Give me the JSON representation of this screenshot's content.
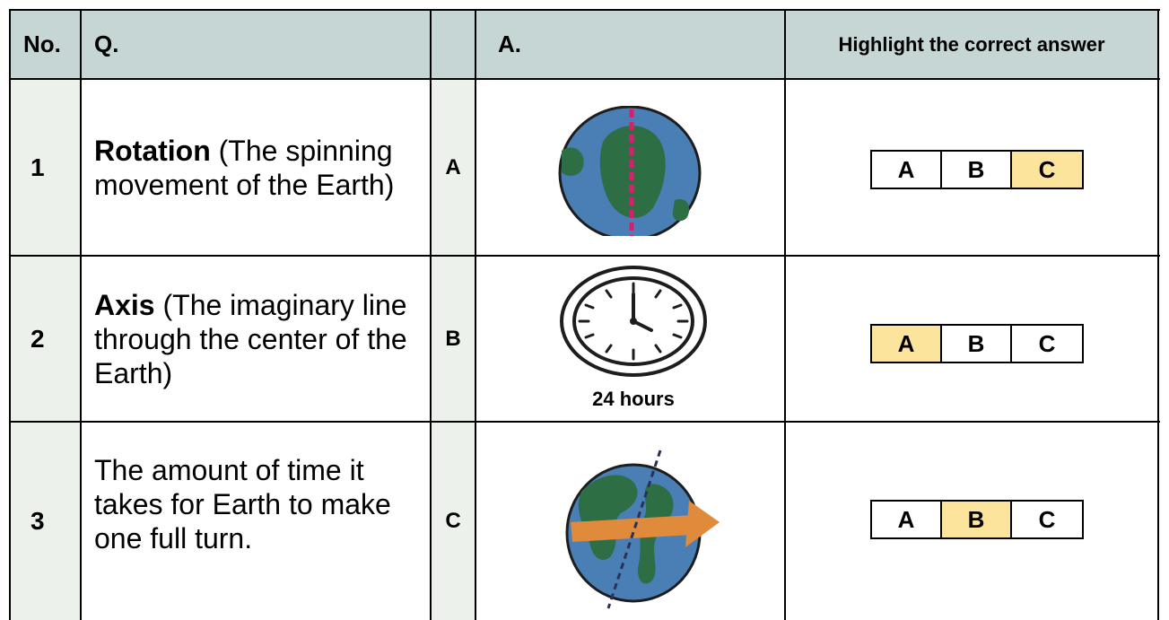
{
  "header": {
    "no": "No.",
    "q": "Q.",
    "a": "A.",
    "highlight": "Highlight the correct answer"
  },
  "rows": [
    {
      "no": "1",
      "q_bold": "Rotation",
      "q_rest": " (The spinning movement of the Earth)",
      "letter": "A",
      "options": [
        "A",
        "B",
        "C"
      ],
      "selected": "C"
    },
    {
      "no": "2",
      "q_bold": "Axis",
      "q_rest": " (The imaginary line through the center of the Earth)",
      "letter": "B",
      "caption": "24 hours",
      "options": [
        "A",
        "B",
        "C"
      ],
      "selected": "A"
    },
    {
      "no": "3",
      "q_bold": "",
      "q_rest": "The amount of time it takes for Earth to make one full turn.",
      "letter": "C",
      "options": [
        "A",
        "B",
        "C"
      ],
      "selected": "B"
    }
  ],
  "colors": {
    "header_bg": "#c5d6d4",
    "side_shade": "#edf1ec",
    "highlight": "#fde49c",
    "ocean": "#4a7fb5",
    "land": "#2e6e45",
    "axis_red": "#d6206e",
    "arrow_orange": "#e08a3c"
  }
}
